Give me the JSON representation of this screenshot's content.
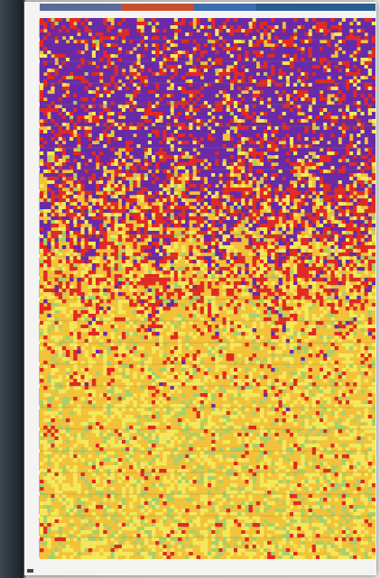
{
  "chart_data": {
    "type": "heatmap",
    "rows": 150,
    "cols": 90,
    "group_rows": 6,
    "legend_colors": [
      "#5a6a9a",
      "#c9502f",
      "#3d6db0",
      "#2a5c8f"
    ],
    "colors": {
      "level_0": "#6a2aa8",
      "level_1": "#e02a24",
      "level_2": "#f2c23a",
      "level_3": "#f4e85a",
      "level_4": "#a9cf6a",
      "separator": "#8a7a40"
    },
    "levels": [
      0,
      1,
      2,
      3,
      4
    ],
    "grid": false,
    "legend_position": "top"
  }
}
